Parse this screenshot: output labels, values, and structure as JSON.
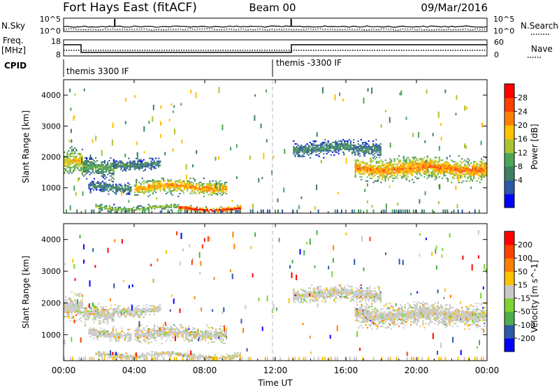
{
  "header": {
    "site": "Fort Hays East (fitACF)",
    "beam": "Beam 00",
    "date": "09/Mar/2016"
  },
  "sky_panel": {
    "left_label": "N.Sky",
    "right_label": "N.Search",
    "left_ticks": [
      "10^5",
      "10^0"
    ],
    "right_ticks": [
      "10^5",
      "10^0"
    ]
  },
  "freq_panel": {
    "left_label": "Freq.",
    "left_unit": "[MHz]",
    "right_label": "Nave",
    "left_ticks": [
      "18",
      "8"
    ],
    "right_ticks": [
      "60",
      "0"
    ]
  },
  "cpid": {
    "label": "CPID",
    "segments": [
      {
        "name": "themis 3300 IF",
        "start_hour": 0
      },
      {
        "name": "themis -3300 IF",
        "start_hour": 12
      }
    ]
  },
  "colors": {
    "power": [
      "#0000ff",
      "#2e58a8",
      "#3f7f5f",
      "#4ca65a",
      "#a8c432",
      "#ffc000",
      "#ff8000",
      "#ff4000",
      "#ff0000"
    ],
    "velocity": [
      "#0000ff",
      "#2e58a8",
      "#4cae4c",
      "#7fd430",
      "#c8c8c8",
      "#ffc000",
      "#ff8000",
      "#ff4000",
      "#ff0000"
    ]
  },
  "chart_data": [
    {
      "type": "heatmap",
      "name": "power",
      "ylabel": "Slant Range [km]",
      "colorbar_label": "Power [dB]",
      "colorbar_ticks": [
        "28",
        "24",
        "20",
        "16",
        "12",
        "8",
        "4"
      ],
      "yticks": [
        "4000",
        "3000",
        "2000",
        "1000"
      ],
      "ylim": [
        180,
        4500
      ],
      "xlim_hours": [
        0,
        24
      ],
      "echo_regions": [
        {
          "t0": 0.0,
          "t1": 1.1,
          "r_center": 1800,
          "r_width": 350,
          "level": 0.6
        },
        {
          "t0": 1.1,
          "t1": 2.8,
          "r_center": 1600,
          "r_width": 250,
          "level": 0.4
        },
        {
          "t0": 2.8,
          "t1": 5.5,
          "r_center": 1750,
          "r_width": 150,
          "level": 0.3
        },
        {
          "t0": 4.0,
          "t1": 9.2,
          "r_center": 1000,
          "r_width": 200,
          "level": 0.7
        },
        {
          "t0": 1.4,
          "t1": 3.8,
          "r_center": 1000,
          "r_width": 150,
          "level": 0.3
        },
        {
          "t0": 6.5,
          "t1": 10.0,
          "r_center": 300,
          "r_width": 80,
          "level": 0.95
        },
        {
          "t0": 1.8,
          "t1": 6.5,
          "r_center": 330,
          "r_width": 80,
          "level": 0.5
        },
        {
          "t0": 13.0,
          "t1": 18.0,
          "r_center": 2250,
          "r_width": 200,
          "level": 0.3
        },
        {
          "t0": 16.5,
          "t1": 24.0,
          "r_center": 1600,
          "r_width": 300,
          "level": 0.75
        }
      ]
    },
    {
      "type": "heatmap",
      "name": "velocity",
      "ylabel": "Slant Range [km]",
      "colorbar_label": "Velocity [m s^-1]",
      "colorbar_ticks": [
        "200",
        "100",
        "50",
        "15",
        "-15",
        "-50",
        "-100",
        "-200"
      ],
      "xlabel": "Time UT",
      "xticks": [
        "00:00",
        "04:00",
        "08:00",
        "12:00",
        "16:00",
        "20:00",
        "00:00"
      ],
      "yticks": [
        "4000",
        "3000",
        "2000",
        "1000"
      ],
      "ylim": [
        180,
        4500
      ],
      "xlim_hours": [
        0,
        24
      ]
    }
  ]
}
